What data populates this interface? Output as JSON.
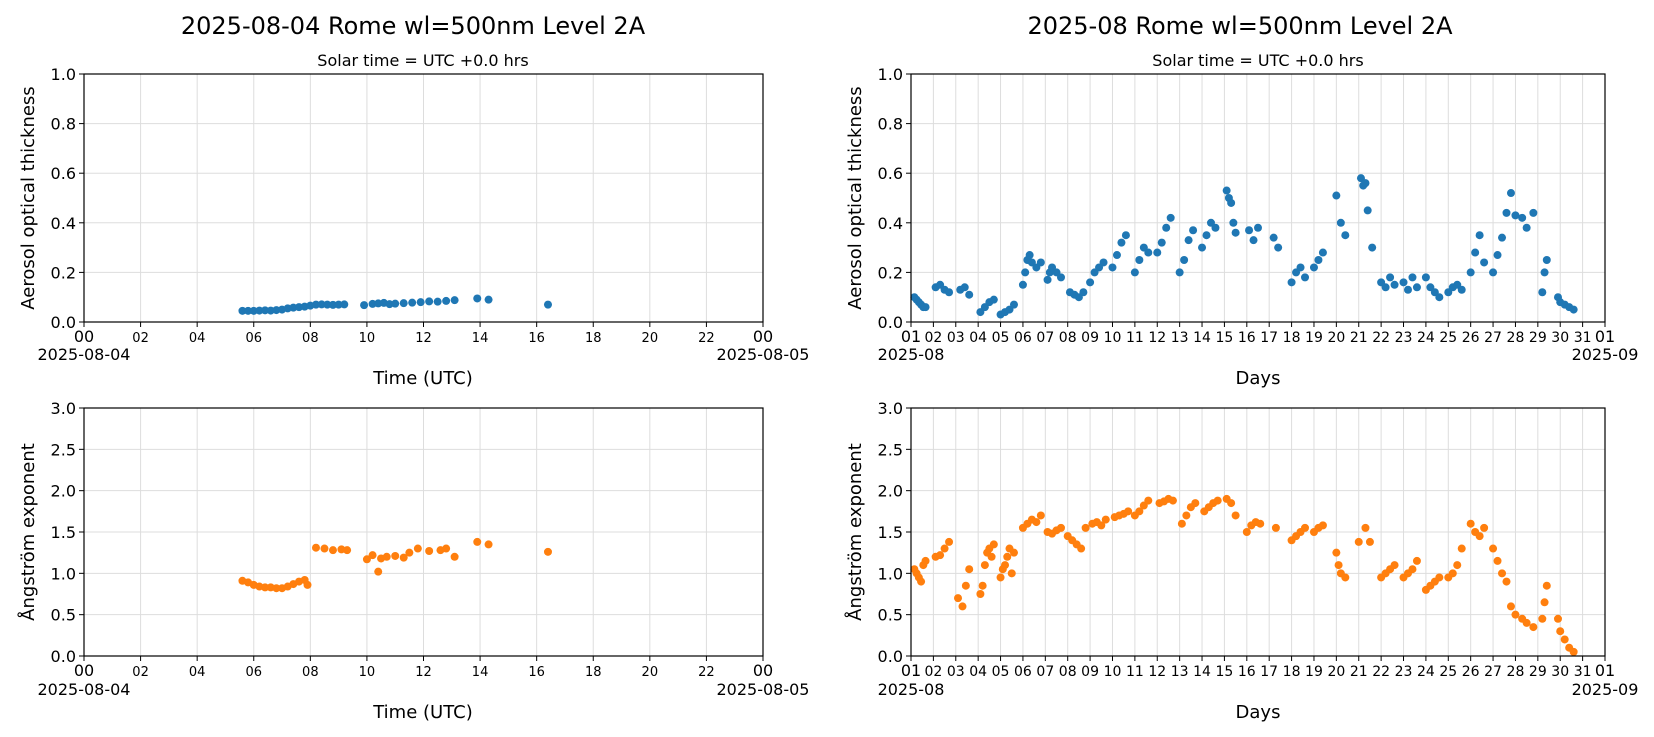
{
  "colors": {
    "aod": "#1f77b4",
    "angstrom": "#ff7f0e",
    "grid": "#dddddd",
    "axis": "#000000"
  },
  "panels": {
    "daily": {
      "title": "2025-08-04  Rome  wl=500nm  Level 2A",
      "subtitle": "Solar time = UTC +0.0 hrs",
      "xlabel": "Time (UTC)",
      "x_start_label": "2025-08-04",
      "x_end_label": "2025-08-05",
      "x_ticks": [
        "00",
        "02",
        "04",
        "06",
        "08",
        "10",
        "12",
        "14",
        "16",
        "18",
        "20",
        "22",
        "00"
      ]
    },
    "monthly": {
      "title": "2025-08  Rome  wl=500nm  Level 2A",
      "subtitle": "Solar time = UTC +0.0 hrs",
      "xlabel": "Days",
      "x_start_label": "2025-08",
      "x_end_label": "2025-09",
      "x_ticks": [
        "01",
        "02",
        "03",
        "04",
        "05",
        "06",
        "07",
        "08",
        "09",
        "10",
        "11",
        "12",
        "13",
        "14",
        "15",
        "16",
        "17",
        "18",
        "19",
        "20",
        "21",
        "22",
        "23",
        "24",
        "25",
        "26",
        "27",
        "28",
        "29",
        "30",
        "31",
        "01"
      ]
    }
  },
  "chart_data": [
    {
      "id": "daily-aod",
      "type": "scatter",
      "ylabel": "Aerosol optical thickness",
      "ylim": [
        0,
        1.0
      ],
      "yticks": [
        "0.0",
        "0.2",
        "0.4",
        "0.6",
        "0.8",
        "1.0"
      ],
      "xlim_hours": [
        0,
        24
      ],
      "grid": true,
      "series": [
        {
          "x": [
            5.6,
            5.8,
            6.0,
            6.2,
            6.4,
            6.6,
            6.8,
            7.0,
            7.2,
            7.4,
            7.6,
            7.8,
            8.0,
            8.2,
            8.4,
            8.6,
            8.8,
            9.0,
            9.2,
            9.9,
            10.2,
            10.4,
            10.6,
            10.8,
            11.0,
            11.3,
            11.6,
            11.9,
            12.2,
            12.5,
            12.8,
            13.1,
            13.9,
            14.3,
            16.4
          ],
          "y": [
            0.045,
            0.045,
            0.045,
            0.046,
            0.047,
            0.046,
            0.048,
            0.05,
            0.055,
            0.058,
            0.06,
            0.062,
            0.066,
            0.07,
            0.071,
            0.07,
            0.069,
            0.07,
            0.071,
            0.068,
            0.073,
            0.075,
            0.077,
            0.072,
            0.074,
            0.076,
            0.078,
            0.08,
            0.083,
            0.082,
            0.085,
            0.088,
            0.095,
            0.09,
            0.07
          ]
        }
      ]
    },
    {
      "id": "daily-angstrom",
      "type": "scatter",
      "ylabel": "Ångström exponent",
      "ylim": [
        0,
        3.0
      ],
      "yticks": [
        "0.0",
        "0.5",
        "1.0",
        "1.5",
        "2.0",
        "2.5",
        "3.0"
      ],
      "xlim_hours": [
        0,
        24
      ],
      "grid": true,
      "series": [
        {
          "x": [
            5.6,
            5.8,
            6.0,
            6.2,
            6.4,
            6.6,
            6.8,
            7.0,
            7.2,
            7.4,
            7.6,
            7.8,
            7.9,
            8.2,
            8.5,
            8.8,
            9.1,
            9.3,
            10.0,
            10.2,
            10.4,
            10.5,
            10.7,
            11.0,
            11.3,
            11.5,
            11.8,
            12.2,
            12.6,
            12.8,
            13.1,
            13.9,
            14.3,
            16.4
          ],
          "y": [
            0.91,
            0.89,
            0.86,
            0.84,
            0.83,
            0.83,
            0.82,
            0.82,
            0.84,
            0.87,
            0.9,
            0.92,
            0.86,
            1.31,
            1.3,
            1.28,
            1.29,
            1.28,
            1.17,
            1.22,
            1.02,
            1.18,
            1.2,
            1.21,
            1.19,
            1.25,
            1.3,
            1.27,
            1.28,
            1.3,
            1.2,
            1.38,
            1.35,
            1.26
          ]
        }
      ]
    },
    {
      "id": "monthly-aod",
      "type": "scatter",
      "ylabel": "Aerosol optical thickness",
      "ylim": [
        0,
        1.0
      ],
      "yticks": [
        "0.0",
        "0.2",
        "0.4",
        "0.6",
        "0.8",
        "1.0"
      ],
      "xlim_days": [
        1,
        32
      ],
      "grid": true,
      "series": [
        {
          "x": [
            1.15,
            1.25,
            1.35,
            1.45,
            1.55,
            1.65,
            2.1,
            2.3,
            2.5,
            2.7,
            3.2,
            3.4,
            3.6,
            4.1,
            4.3,
            4.5,
            4.7,
            5.0,
            5.2,
            5.4,
            5.6,
            6.0,
            6.1,
            6.2,
            6.3,
            6.4,
            6.6,
            6.8,
            7.1,
            7.2,
            7.3,
            7.5,
            7.7,
            8.1,
            8.3,
            8.5,
            8.7,
            9.0,
            9.2,
            9.4,
            9.6,
            10.0,
            10.2,
            10.4,
            10.6,
            11.0,
            11.2,
            11.4,
            11.6,
            12.0,
            12.2,
            12.4,
            12.6,
            13.0,
            13.2,
            13.4,
            13.6,
            14.0,
            14.2,
            14.4,
            14.6,
            15.1,
            15.2,
            15.3,
            15.4,
            15.5,
            16.1,
            16.3,
            16.5,
            17.2,
            17.4,
            18.0,
            18.2,
            18.4,
            18.6,
            19.0,
            19.2,
            19.4,
            20.0,
            20.2,
            20.4,
            21.1,
            21.2,
            21.3,
            21.4,
            21.6,
            22.0,
            22.2,
            22.4,
            22.6,
            23.0,
            23.2,
            23.4,
            23.6,
            24.0,
            24.2,
            24.4,
            24.6,
            25.0,
            25.2,
            25.4,
            25.6,
            26.0,
            26.2,
            26.4,
            26.6,
            27.0,
            27.2,
            27.4,
            27.6,
            27.8,
            28.0,
            28.3,
            28.5,
            28.8,
            29.2,
            29.3,
            29.4,
            29.9,
            30.0,
            30.2,
            30.4,
            30.6
          ],
          "y": [
            0.1,
            0.09,
            0.08,
            0.07,
            0.06,
            0.06,
            0.14,
            0.15,
            0.13,
            0.12,
            0.13,
            0.14,
            0.11,
            0.04,
            0.06,
            0.08,
            0.09,
            0.03,
            0.04,
            0.05,
            0.07,
            0.15,
            0.2,
            0.25,
            0.27,
            0.24,
            0.22,
            0.24,
            0.17,
            0.2,
            0.22,
            0.2,
            0.18,
            0.12,
            0.11,
            0.1,
            0.12,
            0.16,
            0.2,
            0.22,
            0.24,
            0.22,
            0.27,
            0.32,
            0.35,
            0.2,
            0.25,
            0.3,
            0.28,
            0.28,
            0.32,
            0.38,
            0.42,
            0.2,
            0.25,
            0.33,
            0.37,
            0.3,
            0.35,
            0.4,
            0.38,
            0.53,
            0.5,
            0.48,
            0.4,
            0.36,
            0.37,
            0.33,
            0.38,
            0.34,
            0.3,
            0.16,
            0.2,
            0.22,
            0.18,
            0.22,
            0.25,
            0.28,
            0.51,
            0.4,
            0.35,
            0.58,
            0.55,
            0.56,
            0.45,
            0.3,
            0.16,
            0.14,
            0.18,
            0.15,
            0.16,
            0.13,
            0.18,
            0.14,
            0.18,
            0.14,
            0.12,
            0.1,
            0.12,
            0.14,
            0.15,
            0.13,
            0.2,
            0.28,
            0.35,
            0.24,
            0.2,
            0.27,
            0.34,
            0.44,
            0.52,
            0.43,
            0.42,
            0.38,
            0.44,
            0.12,
            0.2,
            0.25,
            0.1,
            0.08,
            0.07,
            0.06,
            0.05
          ]
        }
      ]
    },
    {
      "id": "monthly-angstrom",
      "type": "scatter",
      "ylabel": "Ångström exponent",
      "ylim": [
        0,
        3.0
      ],
      "yticks": [
        "0.0",
        "0.5",
        "1.0",
        "1.5",
        "2.0",
        "2.5",
        "3.0"
      ],
      "xlim_days": [
        1,
        32
      ],
      "grid": true,
      "series": [
        {
          "x": [
            1.15,
            1.25,
            1.35,
            1.45,
            1.55,
            1.65,
            2.1,
            2.3,
            2.5,
            2.7,
            3.1,
            3.3,
            3.45,
            3.6,
            4.1,
            4.2,
            4.3,
            4.4,
            4.5,
            4.6,
            4.7,
            5.0,
            5.1,
            5.2,
            5.3,
            5.4,
            5.5,
            5.6,
            6.0,
            6.2,
            6.4,
            6.6,
            6.8,
            7.1,
            7.3,
            7.5,
            7.7,
            8.0,
            8.2,
            8.4,
            8.6,
            8.8,
            9.1,
            9.3,
            9.5,
            9.7,
            10.1,
            10.3,
            10.5,
            10.7,
            11.0,
            11.2,
            11.4,
            11.6,
            12.1,
            12.3,
            12.5,
            12.7,
            13.1,
            13.3,
            13.5,
            13.7,
            14.1,
            14.3,
            14.5,
            14.7,
            15.1,
            15.3,
            15.5,
            16.0,
            16.2,
            16.4,
            16.6,
            17.3,
            18.0,
            18.2,
            18.4,
            18.6,
            19.0,
            19.2,
            19.4,
            20.0,
            20.1,
            20.2,
            20.4,
            21.0,
            21.3,
            21.5,
            22.0,
            22.2,
            22.4,
            22.6,
            23.0,
            23.2,
            23.4,
            23.6,
            24.0,
            24.2,
            24.4,
            24.6,
            25.0,
            25.2,
            25.4,
            25.6,
            26.0,
            26.2,
            26.4,
            26.6,
            27.0,
            27.2,
            27.4,
            27.6,
            27.8,
            28.0,
            28.3,
            28.5,
            28.8,
            29.2,
            29.3,
            29.4,
            29.9,
            30.0,
            30.2,
            30.4,
            30.6
          ],
          "y": [
            1.05,
            1.0,
            0.95,
            0.9,
            1.1,
            1.15,
            1.2,
            1.22,
            1.3,
            1.38,
            0.7,
            0.6,
            0.85,
            1.05,
            0.75,
            0.85,
            1.1,
            1.25,
            1.3,
            1.2,
            1.35,
            0.95,
            1.05,
            1.1,
            1.2,
            1.3,
            1.0,
            1.25,
            1.55,
            1.6,
            1.65,
            1.62,
            1.7,
            1.5,
            1.48,
            1.52,
            1.55,
            1.45,
            1.4,
            1.35,
            1.3,
            1.55,
            1.6,
            1.62,
            1.58,
            1.65,
            1.68,
            1.7,
            1.72,
            1.75,
            1.7,
            1.75,
            1.82,
            1.88,
            1.85,
            1.87,
            1.9,
            1.88,
            1.6,
            1.7,
            1.8,
            1.85,
            1.75,
            1.8,
            1.85,
            1.88,
            1.9,
            1.85,
            1.7,
            1.5,
            1.58,
            1.62,
            1.6,
            1.55,
            1.4,
            1.45,
            1.5,
            1.55,
            1.5,
            1.55,
            1.58,
            1.25,
            1.1,
            1.0,
            0.95,
            1.38,
            1.55,
            1.38,
            0.95,
            1.0,
            1.05,
            1.1,
            0.95,
            1.0,
            1.05,
            1.15,
            0.8,
            0.85,
            0.9,
            0.95,
            0.95,
            1.0,
            1.1,
            1.3,
            1.6,
            1.5,
            1.45,
            1.55,
            1.3,
            1.15,
            1.0,
            0.9,
            0.6,
            0.5,
            0.45,
            0.4,
            0.35,
            0.45,
            0.65,
            0.85,
            0.45,
            0.3,
            0.2,
            0.1,
            0.05
          ]
        }
      ]
    }
  ]
}
